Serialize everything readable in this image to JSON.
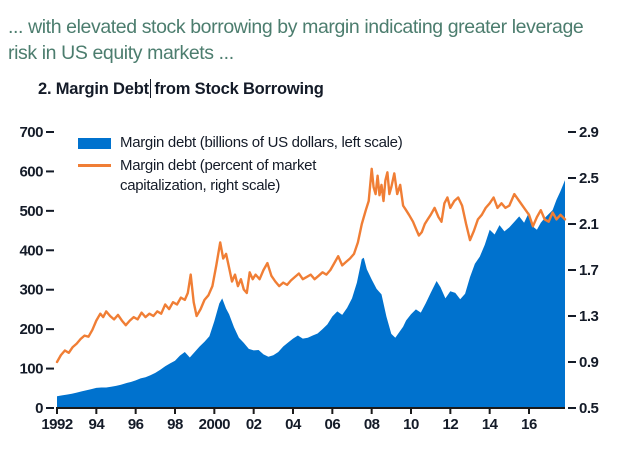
{
  "header": {
    "lead_line1": "... with elevated stock borrowing by margin indicating greater leverage",
    "lead_line2": "risk in US equity markets ...",
    "title_before_cursor": "2. Margin Debt",
    "title_after_cursor": "from Stock Borrowing"
  },
  "colors": {
    "blue": "#0072ce",
    "orange": "#f07e35",
    "text_dark": "#141b28",
    "lead_text": "#4c7d6e",
    "axis_line": "#1a1a1a"
  },
  "legend": {
    "item1_label": "Margin debt (billions of US dollars, left scale)",
    "item2_label_line1": "Margin debt (percent of market",
    "item2_label_line2": "capitalization, right scale)"
  },
  "chart_data": {
    "type": "combo-area-line",
    "title": "2. Margin Debt from Stock Borrowing",
    "grid": false,
    "legend_position": "top-left-inside",
    "left_axis": {
      "min": 0,
      "max": 700,
      "ticks": [
        0,
        100,
        200,
        300,
        400,
        500,
        600,
        700
      ]
    },
    "right_axis": {
      "min": 0.5,
      "max": 2.9,
      "ticks": [
        0.5,
        0.9,
        1.3,
        1.7,
        2.1,
        2.5,
        2.9
      ]
    },
    "x_axis": {
      "min": 1992.0,
      "max": 2017.83,
      "tick_years": [
        1992,
        1994,
        1996,
        1998,
        2000,
        2002,
        2004,
        2006,
        2008,
        2010,
        2012,
        2014,
        2016
      ],
      "tick_labels": [
        "1992",
        "94",
        "96",
        "98",
        "2000",
        "02",
        "04",
        "06",
        "08",
        "10",
        "12",
        "14",
        "16"
      ]
    },
    "series": [
      {
        "name": "Margin debt (billions of US dollars, left scale)",
        "type": "area",
        "axis": "left",
        "color": "#0072ce",
        "points": [
          [
            1992.0,
            30
          ],
          [
            1992.25,
            32
          ],
          [
            1992.5,
            34
          ],
          [
            1992.75,
            36
          ],
          [
            1993.0,
            39
          ],
          [
            1993.25,
            42
          ],
          [
            1993.5,
            45
          ],
          [
            1993.75,
            48
          ],
          [
            1994.0,
            51
          ],
          [
            1994.25,
            52
          ],
          [
            1994.5,
            52
          ],
          [
            1994.75,
            54
          ],
          [
            1995.0,
            56
          ],
          [
            1995.25,
            59
          ],
          [
            1995.5,
            63
          ],
          [
            1995.75,
            66
          ],
          [
            1996.0,
            70
          ],
          [
            1996.25,
            75
          ],
          [
            1996.5,
            78
          ],
          [
            1996.75,
            83
          ],
          [
            1997.0,
            89
          ],
          [
            1997.25,
            97
          ],
          [
            1997.5,
            106
          ],
          [
            1997.75,
            113
          ],
          [
            1998.0,
            120
          ],
          [
            1998.25,
            133
          ],
          [
            1998.5,
            142
          ],
          [
            1998.75,
            128
          ],
          [
            1999.0,
            142
          ],
          [
            1999.25,
            156
          ],
          [
            1999.5,
            168
          ],
          [
            1999.75,
            182
          ],
          [
            2000.0,
            220
          ],
          [
            2000.25,
            265
          ],
          [
            2000.4,
            278
          ],
          [
            2000.6,
            252
          ],
          [
            2000.75,
            238
          ],
          [
            2001.0,
            205
          ],
          [
            2001.25,
            178
          ],
          [
            2001.5,
            165
          ],
          [
            2001.75,
            150
          ],
          [
            2002.0,
            146
          ],
          [
            2002.25,
            147
          ],
          [
            2002.5,
            136
          ],
          [
            2002.75,
            130
          ],
          [
            2003.0,
            134
          ],
          [
            2003.25,
            142
          ],
          [
            2003.5,
            156
          ],
          [
            2003.75,
            166
          ],
          [
            2004.0,
            176
          ],
          [
            2004.25,
            184
          ],
          [
            2004.5,
            176
          ],
          [
            2004.75,
            178
          ],
          [
            2005.0,
            184
          ],
          [
            2005.25,
            189
          ],
          [
            2005.5,
            200
          ],
          [
            2005.75,
            212
          ],
          [
            2006.0,
            232
          ],
          [
            2006.25,
            245
          ],
          [
            2006.5,
            236
          ],
          [
            2006.75,
            254
          ],
          [
            2007.0,
            278
          ],
          [
            2007.25,
            318
          ],
          [
            2007.5,
            378
          ],
          [
            2007.6,
            381
          ],
          [
            2007.75,
            352
          ],
          [
            2008.0,
            326
          ],
          [
            2008.25,
            302
          ],
          [
            2008.5,
            288
          ],
          [
            2008.75,
            232
          ],
          [
            2009.0,
            188
          ],
          [
            2009.2,
            178
          ],
          [
            2009.4,
            192
          ],
          [
            2009.6,
            206
          ],
          [
            2009.75,
            222
          ],
          [
            2010.0,
            238
          ],
          [
            2010.25,
            250
          ],
          [
            2010.5,
            242
          ],
          [
            2010.75,
            266
          ],
          [
            2011.0,
            292
          ],
          [
            2011.3,
            322
          ],
          [
            2011.5,
            306
          ],
          [
            2011.75,
            278
          ],
          [
            2012.0,
            296
          ],
          [
            2012.25,
            292
          ],
          [
            2012.5,
            276
          ],
          [
            2012.75,
            290
          ],
          [
            2013.0,
            332
          ],
          [
            2013.25,
            366
          ],
          [
            2013.5,
            384
          ],
          [
            2013.75,
            414
          ],
          [
            2014.0,
            452
          ],
          [
            2014.25,
            440
          ],
          [
            2014.5,
            464
          ],
          [
            2014.75,
            448
          ],
          [
            2015.0,
            458
          ],
          [
            2015.25,
            472
          ],
          [
            2015.5,
            486
          ],
          [
            2015.75,
            470
          ],
          [
            2016.0,
            496
          ],
          [
            2016.25,
            458
          ],
          [
            2016.4,
            452
          ],
          [
            2016.6,
            470
          ],
          [
            2016.8,
            482
          ],
          [
            2017.0,
            492
          ],
          [
            2017.2,
            502
          ],
          [
            2017.4,
            528
          ],
          [
            2017.6,
            550
          ],
          [
            2017.83,
            578
          ]
        ]
      },
      {
        "name": "Margin debt (percent of market capitalization, right scale)",
        "type": "line",
        "axis": "right",
        "color": "#f07e35",
        "points": [
          [
            1992.0,
            0.9
          ],
          [
            1992.2,
            0.96
          ],
          [
            1992.4,
            1.0
          ],
          [
            1992.6,
            0.98
          ],
          [
            1992.8,
            1.03
          ],
          [
            1993.0,
            1.06
          ],
          [
            1993.2,
            1.1
          ],
          [
            1993.4,
            1.13
          ],
          [
            1993.6,
            1.12
          ],
          [
            1993.8,
            1.18
          ],
          [
            1994.0,
            1.26
          ],
          [
            1994.2,
            1.32
          ],
          [
            1994.35,
            1.29
          ],
          [
            1994.5,
            1.34
          ],
          [
            1994.7,
            1.3
          ],
          [
            1994.9,
            1.27
          ],
          [
            1995.1,
            1.31
          ],
          [
            1995.3,
            1.26
          ],
          [
            1995.5,
            1.22
          ],
          [
            1995.7,
            1.26
          ],
          [
            1995.9,
            1.29
          ],
          [
            1996.1,
            1.27
          ],
          [
            1996.3,
            1.33
          ],
          [
            1996.5,
            1.29
          ],
          [
            1996.7,
            1.32
          ],
          [
            1996.9,
            1.3
          ],
          [
            1997.1,
            1.34
          ],
          [
            1997.3,
            1.32
          ],
          [
            1997.5,
            1.4
          ],
          [
            1997.7,
            1.36
          ],
          [
            1997.9,
            1.42
          ],
          [
            1998.1,
            1.4
          ],
          [
            1998.3,
            1.46
          ],
          [
            1998.5,
            1.44
          ],
          [
            1998.65,
            1.5
          ],
          [
            1998.8,
            1.66
          ],
          [
            1998.95,
            1.42
          ],
          [
            1999.1,
            1.3
          ],
          [
            1999.3,
            1.36
          ],
          [
            1999.5,
            1.44
          ],
          [
            1999.7,
            1.48
          ],
          [
            1999.9,
            1.56
          ],
          [
            2000.1,
            1.74
          ],
          [
            2000.3,
            1.94
          ],
          [
            2000.45,
            1.8
          ],
          [
            2000.6,
            1.84
          ],
          [
            2000.75,
            1.72
          ],
          [
            2000.9,
            1.6
          ],
          [
            2001.05,
            1.66
          ],
          [
            2001.2,
            1.56
          ],
          [
            2001.35,
            1.62
          ],
          [
            2001.5,
            1.53
          ],
          [
            2001.65,
            1.5
          ],
          [
            2001.8,
            1.68
          ],
          [
            2001.95,
            1.62
          ],
          [
            2002.1,
            1.66
          ],
          [
            2002.3,
            1.62
          ],
          [
            2002.5,
            1.7
          ],
          [
            2002.7,
            1.76
          ],
          [
            2002.9,
            1.65
          ],
          [
            2003.1,
            1.6
          ],
          [
            2003.3,
            1.56
          ],
          [
            2003.5,
            1.59
          ],
          [
            2003.7,
            1.57
          ],
          [
            2003.9,
            1.61
          ],
          [
            2004.1,
            1.64
          ],
          [
            2004.3,
            1.67
          ],
          [
            2004.5,
            1.62
          ],
          [
            2004.7,
            1.64
          ],
          [
            2004.9,
            1.66
          ],
          [
            2005.1,
            1.62
          ],
          [
            2005.3,
            1.65
          ],
          [
            2005.5,
            1.68
          ],
          [
            2005.7,
            1.66
          ],
          [
            2005.9,
            1.7
          ],
          [
            2006.1,
            1.76
          ],
          [
            2006.3,
            1.82
          ],
          [
            2006.5,
            1.74
          ],
          [
            2006.7,
            1.77
          ],
          [
            2006.9,
            1.8
          ],
          [
            2007.1,
            1.84
          ],
          [
            2007.3,
            1.94
          ],
          [
            2007.5,
            2.1
          ],
          [
            2007.7,
            2.22
          ],
          [
            2007.85,
            2.3
          ],
          [
            2008.0,
            2.58
          ],
          [
            2008.1,
            2.42
          ],
          [
            2008.2,
            2.36
          ],
          [
            2008.3,
            2.52
          ],
          [
            2008.4,
            2.35
          ],
          [
            2008.5,
            2.44
          ],
          [
            2008.6,
            2.3
          ],
          [
            2008.7,
            2.48
          ],
          [
            2008.8,
            2.55
          ],
          [
            2008.9,
            2.36
          ],
          [
            2009.0,
            2.42
          ],
          [
            2009.15,
            2.54
          ],
          [
            2009.3,
            2.36
          ],
          [
            2009.45,
            2.44
          ],
          [
            2009.6,
            2.26
          ],
          [
            2009.75,
            2.22
          ],
          [
            2009.9,
            2.18
          ],
          [
            2010.1,
            2.12
          ],
          [
            2010.25,
            2.06
          ],
          [
            2010.4,
            2.0
          ],
          [
            2010.55,
            2.03
          ],
          [
            2010.7,
            2.1
          ],
          [
            2010.85,
            2.14
          ],
          [
            2011.0,
            2.18
          ],
          [
            2011.2,
            2.24
          ],
          [
            2011.4,
            2.16
          ],
          [
            2011.55,
            2.12
          ],
          [
            2011.7,
            2.28
          ],
          [
            2011.85,
            2.33
          ],
          [
            2012.0,
            2.24
          ],
          [
            2012.2,
            2.3
          ],
          [
            2012.4,
            2.33
          ],
          [
            2012.6,
            2.26
          ],
          [
            2012.8,
            2.1
          ],
          [
            2013.0,
            1.96
          ],
          [
            2013.2,
            2.04
          ],
          [
            2013.4,
            2.14
          ],
          [
            2013.6,
            2.18
          ],
          [
            2013.8,
            2.24
          ],
          [
            2014.0,
            2.28
          ],
          [
            2014.2,
            2.33
          ],
          [
            2014.4,
            2.24
          ],
          [
            2014.6,
            2.28
          ],
          [
            2014.8,
            2.24
          ],
          [
            2015.0,
            2.26
          ],
          [
            2015.25,
            2.36
          ],
          [
            2015.5,
            2.3
          ],
          [
            2015.75,
            2.24
          ],
          [
            2016.0,
            2.18
          ],
          [
            2016.2,
            2.08
          ],
          [
            2016.4,
            2.16
          ],
          [
            2016.6,
            2.22
          ],
          [
            2016.8,
            2.14
          ],
          [
            2017.0,
            2.12
          ],
          [
            2017.2,
            2.2
          ],
          [
            2017.4,
            2.14
          ],
          [
            2017.6,
            2.18
          ],
          [
            2017.83,
            2.14
          ]
        ]
      }
    ]
  }
}
